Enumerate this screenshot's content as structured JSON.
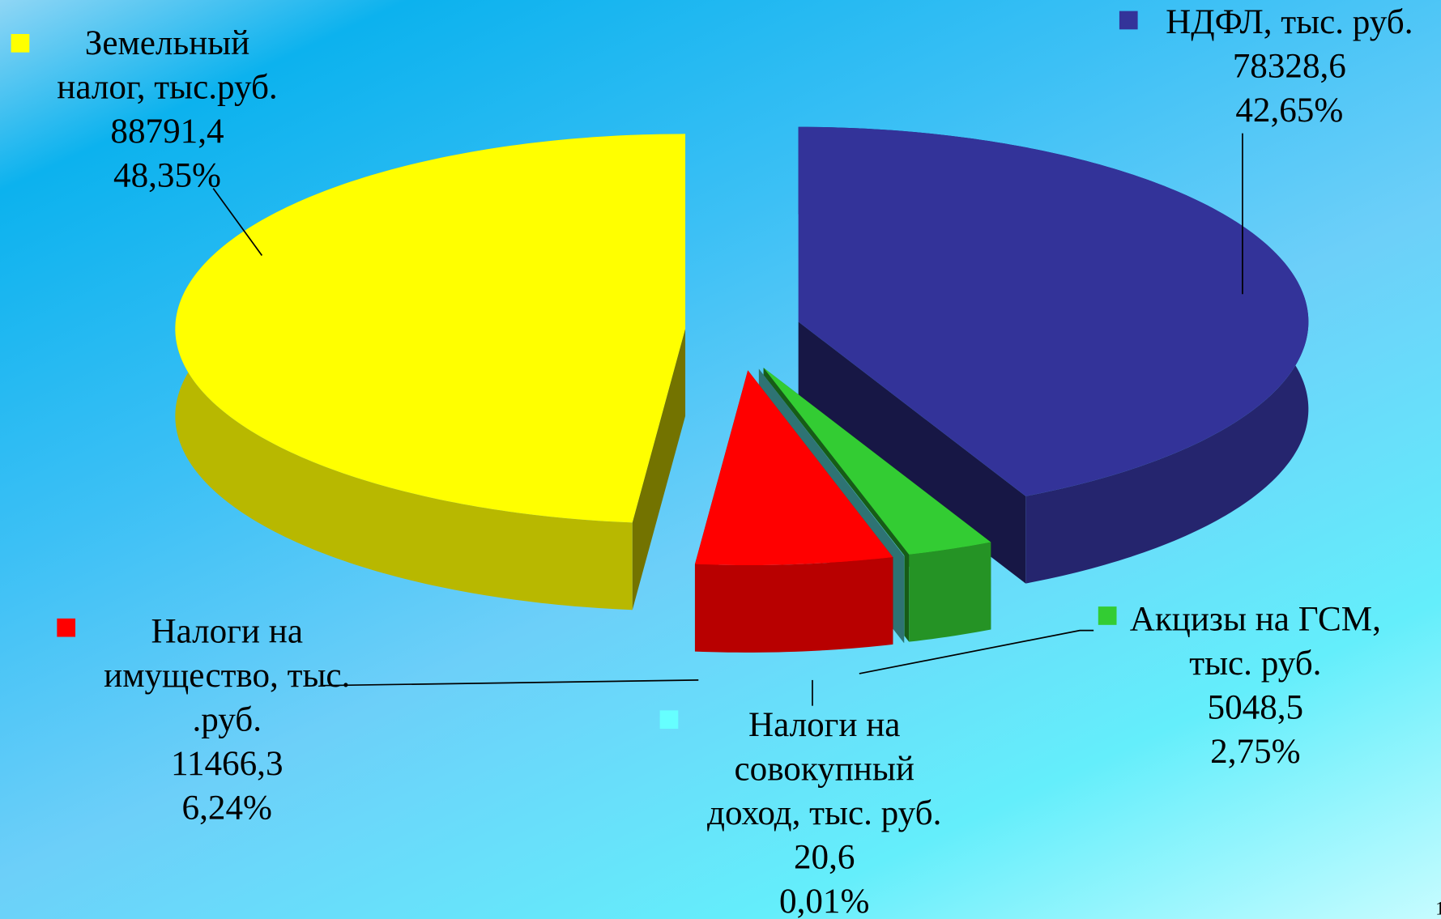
{
  "chart_data": {
    "type": "pie3d",
    "categories": [
      "НДФЛ, тыс. руб.",
      "Акцизы на ГСМ, тыс. руб.",
      "Налоги на совокупный доход, тыс. руб.",
      "Налоги на имущество, тыс. .руб.",
      "Земельный налог, тыс.руб."
    ],
    "values": [
      78328.6,
      5048.5,
      20.6,
      11466.3,
      88791.4
    ],
    "value_labels": [
      "78328,6",
      "5048,5",
      "20,6",
      "11466,3",
      "88791,4"
    ],
    "percentages": [
      42.65,
      2.75,
      0.01,
      6.24,
      48.35
    ],
    "percentage_labels": [
      "42,65%",
      "2,75%",
      "0,01%",
      "6,24%",
      "48,35%"
    ],
    "colors": [
      "#333399",
      "#33cc33",
      "#66ffff",
      "#ff0000",
      "#ffff00"
    ],
    "page_number": "1"
  }
}
